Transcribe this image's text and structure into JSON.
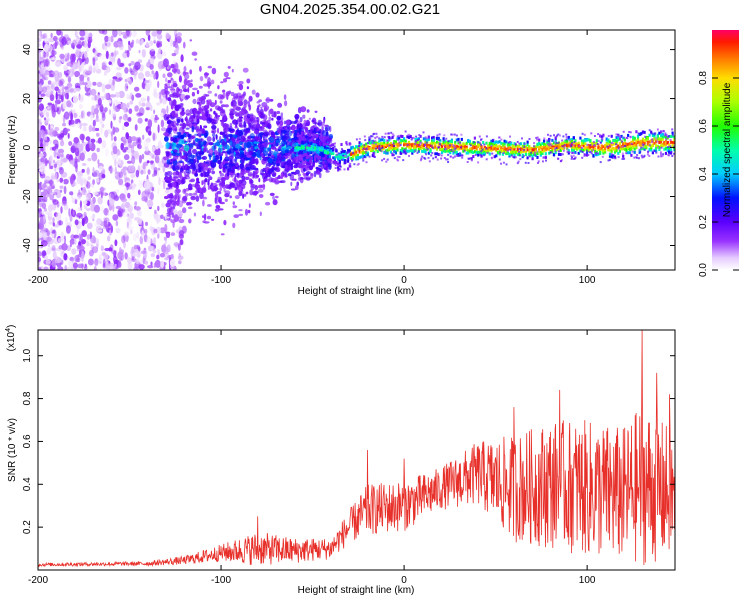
{
  "title": "GN04.2025.354.00.02.G21",
  "chart_data": [
    {
      "type": "heatmap",
      "name": "spectrogram",
      "xlabel": "Height of straight line (km)",
      "ylabel": "Frequency (Hz)",
      "xlim": [
        -200,
        148
      ],
      "ylim": [
        -50,
        48
      ],
      "xticks": [
        -200,
        -100,
        0,
        100
      ],
      "xtick_labels": [
        "-200",
        "-100",
        "0",
        "100"
      ],
      "yticks": [
        40,
        20,
        0,
        -20,
        -40
      ],
      "ytick_labels": [
        "40",
        "20",
        "0",
        "-20",
        "-40"
      ],
      "colorbar": {
        "label": "Normalized spectral amplitude",
        "range": [
          0,
          1
        ],
        "ticks": [
          0.0,
          0.2,
          0.4,
          0.6,
          0.8
        ],
        "tick_labels": [
          "0.0",
          "0.2",
          "0.4",
          "0.6",
          "0.8"
        ]
      },
      "regions": [
        {
          "x_range": [
            -200,
            -130
          ],
          "freq_range": [
            -50,
            48
          ],
          "amplitude": 0.05,
          "description_values": [
            0.05
          ]
        },
        {
          "x_range": [
            -130,
            -40
          ],
          "freq_range": [
            -25,
            20
          ],
          "amplitude": 0.2
        },
        {
          "x_range": [
            -40,
            148
          ],
          "freq_range": [
            -5,
            8
          ],
          "amplitude": 0.9
        }
      ],
      "ridge": [
        {
          "x": -50,
          "f": 0
        },
        {
          "x": -35,
          "f": -4
        },
        {
          "x": -30,
          "f": -3
        },
        {
          "x": -20,
          "f": 0
        },
        {
          "x": 0,
          "f": 1
        },
        {
          "x": 40,
          "f": 0
        },
        {
          "x": 70,
          "f": -1
        },
        {
          "x": 90,
          "f": 1
        },
        {
          "x": 110,
          "f": 0
        },
        {
          "x": 130,
          "f": 2
        },
        {
          "x": 148,
          "f": 2
        }
      ]
    },
    {
      "type": "line",
      "name": "snr",
      "xlabel": "Height of straight line (km)",
      "ylabel": "SNR (10 * v/v)",
      "scale_label": "(x10",
      "scale_exp": "4",
      "scale_close": ")",
      "xlim": [
        -200,
        148
      ],
      "ylim": [
        0,
        1.12
      ],
      "xticks": [
        -200,
        -100,
        0,
        100
      ],
      "xtick_labels": [
        "-200",
        "-100",
        "0",
        "100"
      ],
      "yticks": [
        0.2,
        0.4,
        0.6,
        0.8,
        1.0
      ],
      "ytick_labels": [
        "0.2",
        "0.4",
        "0.6",
        "0.8",
        "1.0"
      ],
      "color": "#e8302a",
      "envelope": [
        {
          "x": -200,
          "mean": 0.025,
          "amp": 0.008
        },
        {
          "x": -140,
          "mean": 0.03,
          "amp": 0.01
        },
        {
          "x": -120,
          "mean": 0.045,
          "amp": 0.02
        },
        {
          "x": -100,
          "mean": 0.08,
          "amp": 0.04
        },
        {
          "x": -80,
          "mean": 0.1,
          "amp": 0.08
        },
        {
          "x": -60,
          "mean": 0.09,
          "amp": 0.06
        },
        {
          "x": -40,
          "mean": 0.1,
          "amp": 0.05
        },
        {
          "x": -30,
          "mean": 0.2,
          "amp": 0.08
        },
        {
          "x": -20,
          "mean": 0.28,
          "amp": 0.12
        },
        {
          "x": 0,
          "mean": 0.3,
          "amp": 0.12
        },
        {
          "x": 20,
          "mean": 0.38,
          "amp": 0.1
        },
        {
          "x": 40,
          "mean": 0.45,
          "amp": 0.15
        },
        {
          "x": 60,
          "mean": 0.38,
          "amp": 0.25
        },
        {
          "x": 80,
          "mean": 0.4,
          "amp": 0.3
        },
        {
          "x": 100,
          "mean": 0.38,
          "amp": 0.32
        },
        {
          "x": 120,
          "mean": 0.35,
          "amp": 0.32
        },
        {
          "x": 130,
          "mean": 0.4,
          "amp": 0.38
        },
        {
          "x": 148,
          "mean": 0.35,
          "amp": 0.3
        }
      ],
      "peaks": [
        {
          "x": -80,
          "y": 0.25
        },
        {
          "x": -20,
          "y": 0.56
        },
        {
          "x": 0,
          "y": 0.52
        },
        {
          "x": 60,
          "y": 0.76
        },
        {
          "x": 85,
          "y": 0.84
        },
        {
          "x": 130,
          "y": 1.12
        },
        {
          "x": 138,
          "y": 0.92
        },
        {
          "x": 145,
          "y": 0.82
        }
      ]
    }
  ],
  "colors": {
    "signal": "#e8302a",
    "axis": "#000000",
    "background": "#ffffff"
  }
}
